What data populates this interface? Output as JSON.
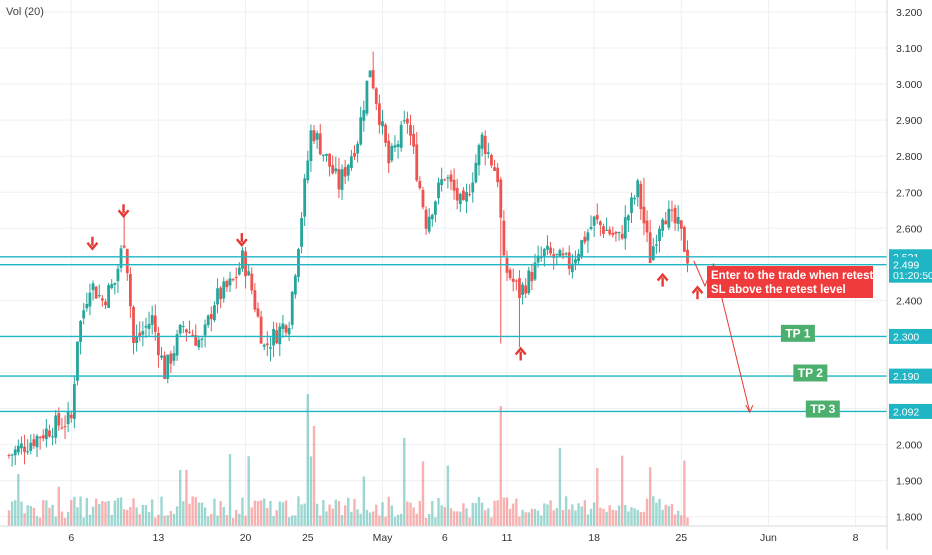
{
  "indicator_label": "Vol (20)",
  "colors": {
    "up": "#26a69a",
    "down": "#ef5350",
    "level_line": "#1fb5c4",
    "tp_box": "#4caf6e",
    "note_box": "#ef3b3b",
    "arrow": "#e53935",
    "grid": "#eef0f3",
    "axis_text": "#333333"
  },
  "price_axis_ticks": [
    "3.200",
    "3.100",
    "3.000",
    "2.900",
    "2.800",
    "2.700",
    "2.600",
    "2.500",
    "2.400",
    "2.300",
    "2.200",
    "2.100",
    "2.000",
    "1.900",
    "1.800"
  ],
  "price_axis_values": [
    3.2,
    3.1,
    3.0,
    2.9,
    2.8,
    2.7,
    2.6,
    2.5,
    2.4,
    2.3,
    2.2,
    2.1,
    2.0,
    1.9,
    1.8
  ],
  "time_axis_ticks": [
    {
      "label": "6",
      "day": 6
    },
    {
      "label": "13",
      "day": 13
    },
    {
      "label": "20",
      "day": 20
    },
    {
      "label": "25",
      "day": 25
    },
    {
      "label": "May",
      "day": 31
    },
    {
      "label": "6",
      "day": 36
    },
    {
      "label": "11",
      "day": 41
    },
    {
      "label": "18",
      "day": 48
    },
    {
      "label": "25",
      "day": 55
    },
    {
      "label": "Jun",
      "day": 62
    },
    {
      "label": "8",
      "day": 69
    }
  ],
  "price_badges": [
    {
      "text": "2.521",
      "price": 2.521,
      "color": "#1fb5c4"
    },
    {
      "text": "01:20:50",
      "price": 2.47,
      "color": "#1fb5c4"
    },
    {
      "text": "2.499",
      "price": 2.499,
      "color": "#1fb5c4"
    },
    {
      "text": "2.300",
      "price": 2.3,
      "color": "#1fb5c4"
    },
    {
      "text": "2.190",
      "price": 2.19,
      "color": "#1fb5c4"
    },
    {
      "text": "2.092",
      "price": 2.092,
      "color": "#1fb5c4"
    }
  ],
  "annotations": {
    "note_line1": "Enter to the trade when retest",
    "note_line2": "SL above the retest level",
    "tp_labels": [
      {
        "text": "TP 1",
        "price": 2.31,
        "day": 63
      },
      {
        "text": "TP 2",
        "price": 2.2,
        "day": 64
      },
      {
        "text": "TP 3",
        "price": 2.1,
        "day": 65
      }
    ],
    "down_arrows": [
      {
        "day": 7.7,
        "price": 2.56
      },
      {
        "day": 10.2,
        "price": 2.65
      },
      {
        "day": 19.7,
        "price": 2.57
      }
    ],
    "up_arrows": [
      {
        "day": 42.1,
        "price": 2.25
      },
      {
        "day": 53.5,
        "price": 2.455
      },
      {
        "day": 56.3,
        "price": 2.42
      }
    ]
  },
  "chart_data": {
    "type": "candlestick",
    "ylim": [
      1.77,
      3.22
    ],
    "x_range_days": [
      1,
      74
    ],
    "horizontal_levels": [
      2.521,
      2.499,
      2.3,
      2.19,
      2.092
    ],
    "projection_path": [
      {
        "day": 56.0,
        "price": 2.51
      },
      {
        "day": 56.9,
        "price": 2.44
      },
      {
        "day": 57.6,
        "price": 2.5
      },
      {
        "day": 60.5,
        "price": 2.09
      }
    ],
    "anchors": [
      {
        "day": 1.0,
        "price": 1.97
      },
      {
        "day": 4.5,
        "price": 2.05
      },
      {
        "day": 6.0,
        "price": 2.07
      },
      {
        "day": 6.5,
        "price": 2.3
      },
      {
        "day": 7.5,
        "price": 2.45
      },
      {
        "day": 8.5,
        "price": 2.4
      },
      {
        "day": 9.5,
        "price": 2.45
      },
      {
        "day": 10.3,
        "price": 2.58
      },
      {
        "day": 11.0,
        "price": 2.28
      },
      {
        "day": 12.5,
        "price": 2.35
      },
      {
        "day": 13.5,
        "price": 2.2
      },
      {
        "day": 15.0,
        "price": 2.33
      },
      {
        "day": 16.5,
        "price": 2.28
      },
      {
        "day": 17.5,
        "price": 2.4
      },
      {
        "day": 19.0,
        "price": 2.45
      },
      {
        "day": 19.8,
        "price": 2.52
      },
      {
        "day": 20.5,
        "price": 2.43
      },
      {
        "day": 21.5,
        "price": 2.27
      },
      {
        "day": 23.5,
        "price": 2.35
      },
      {
        "day": 24.3,
        "price": 2.58
      },
      {
        "day": 25.3,
        "price": 2.88
      },
      {
        "day": 27.5,
        "price": 2.72
      },
      {
        "day": 29.0,
        "price": 2.85
      },
      {
        "day": 30.0,
        "price": 3.05
      },
      {
        "day": 31.5,
        "price": 2.78
      },
      {
        "day": 33.0,
        "price": 2.9
      },
      {
        "day": 34.5,
        "price": 2.62
      },
      {
        "day": 36.0,
        "price": 2.75
      },
      {
        "day": 37.5,
        "price": 2.65
      },
      {
        "day": 39.0,
        "price": 2.85
      },
      {
        "day": 40.3,
        "price": 2.74
      },
      {
        "day": 40.7,
        "price": 2.5
      },
      {
        "day": 42.0,
        "price": 2.42
      },
      {
        "day": 44.0,
        "price": 2.53
      },
      {
        "day": 46.0,
        "price": 2.5
      },
      {
        "day": 48.0,
        "price": 2.62
      },
      {
        "day": 50.0,
        "price": 2.57
      },
      {
        "day": 51.5,
        "price": 2.71
      },
      {
        "day": 52.5,
        "price": 2.52
      },
      {
        "day": 53.5,
        "price": 2.65
      },
      {
        "day": 54.8,
        "price": 2.6
      },
      {
        "day": 55.7,
        "price": 2.5
      }
    ]
  }
}
